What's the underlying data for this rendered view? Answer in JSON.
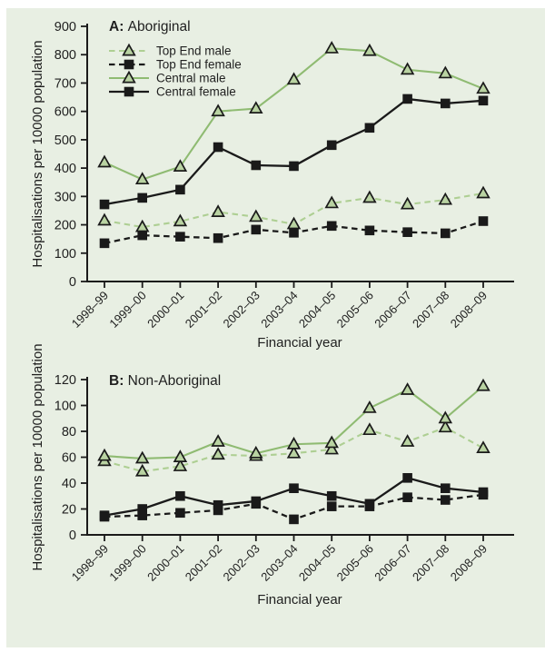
{
  "figure": {
    "background_color": "#e8efe3",
    "frame_color": "#ffffff",
    "text_color": "#1f1f1f"
  },
  "palette": {
    "green_solid": "#8fbb72",
    "green_dashed": "#aecf93",
    "black": "#1a1a1a",
    "triangle_fill": "#b9d3a2",
    "axis": "#1a1a1a"
  },
  "chart_data": [
    {
      "type": "line",
      "panel_label": "A:",
      "title": "Aboriginal",
      "xlabel": "Financial year",
      "ylabel": "Hospitalisations per 10000 population",
      "ylim": [
        0,
        900
      ],
      "ytick_step": 100,
      "grid": false,
      "show_legend": true,
      "legend_position": "top-left-inside",
      "categories": [
        "1998–99",
        "1999–00",
        "2000–01",
        "2001–02",
        "2002–03",
        "2003–04",
        "2004–05",
        "2005–06",
        "2006–07",
        "2007–08",
        "2008–09"
      ],
      "series": [
        {
          "name": "Top End male",
          "line": "dashed",
          "color": "green",
          "marker": "triangle",
          "values": [
            215,
            192,
            212,
            245,
            228,
            202,
            276,
            295,
            272,
            288,
            311
          ]
        },
        {
          "name": "Top End female",
          "line": "dashed",
          "color": "black",
          "marker": "square",
          "values": [
            135,
            163,
            158,
            153,
            183,
            172,
            196,
            180,
            174,
            170,
            213
          ]
        },
        {
          "name": "Central male",
          "line": "solid",
          "color": "green",
          "marker": "triangle",
          "values": [
            420,
            360,
            405,
            600,
            610,
            712,
            822,
            813,
            747,
            734,
            680
          ]
        },
        {
          "name": "Central female",
          "line": "solid",
          "color": "black",
          "marker": "square",
          "values": [
            272,
            295,
            324,
            474,
            410,
            407,
            481,
            542,
            644,
            628,
            638
          ]
        }
      ]
    },
    {
      "type": "line",
      "panel_label": "B:",
      "title": "Non-Aboriginal",
      "xlabel": "Financial year",
      "ylabel": "Hospitalisations per 10000 population",
      "ylim": [
        0,
        120
      ],
      "ytick_step": 20,
      "grid": false,
      "show_legend": false,
      "categories": [
        "1998–99",
        "1999–00",
        "2000–01",
        "2001–02",
        "2002–03",
        "2003–04",
        "2004–05",
        "2005–06",
        "2006–07",
        "2007–08",
        "2008–09"
      ],
      "series": [
        {
          "name": "Top End male",
          "line": "dashed",
          "color": "green",
          "marker": "triangle",
          "values": [
            57,
            49,
            53,
            62,
            61,
            63,
            66,
            81,
            72,
            83,
            67
          ]
        },
        {
          "name": "Top End female",
          "line": "dashed",
          "color": "black",
          "marker": "square",
          "values": [
            14,
            15,
            17,
            19,
            24,
            12,
            22,
            22,
            29,
            27,
            31
          ]
        },
        {
          "name": "Central male",
          "line": "solid",
          "color": "green",
          "marker": "triangle",
          "values": [
            61,
            59,
            60,
            72,
            63,
            70,
            71,
            98,
            112,
            90,
            115
          ]
        },
        {
          "name": "Central female",
          "line": "solid",
          "color": "black",
          "marker": "square",
          "values": [
            15,
            20,
            30,
            23,
            26,
            36,
            30,
            24,
            44,
            36,
            33
          ]
        }
      ]
    }
  ]
}
